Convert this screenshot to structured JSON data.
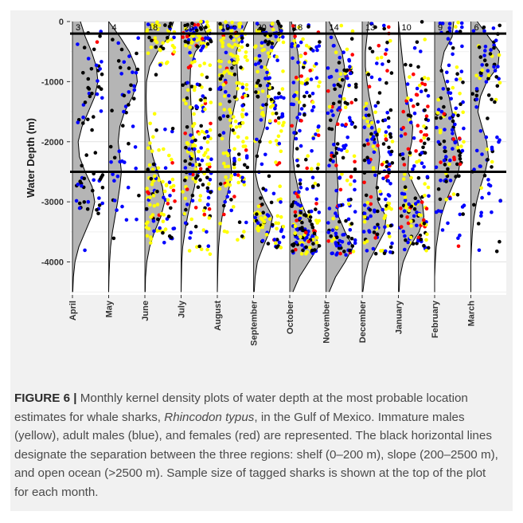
{
  "chart_data": {
    "type": "violin",
    "ylabel": "Water Depth (m)",
    "xlabel": "",
    "ylim": [
      -4550,
      0
    ],
    "y_ticks": [
      0,
      -1000,
      -2000,
      -3000,
      -4000
    ],
    "y_tick_labels": [
      "0",
      "-1000",
      "-2000",
      "-3000",
      "-4000"
    ],
    "grid": true,
    "legend": "none",
    "categories": [
      "April",
      "May",
      "June",
      "July",
      "August",
      "September",
      "October",
      "November",
      "December",
      "January",
      "February",
      "March"
    ],
    "sample_sizes": [
      "3",
      "4",
      "18",
      "26",
      "19",
      "20",
      "18",
      "14",
      "13",
      "10",
      "9",
      "6"
    ],
    "reference_lines": [
      -200,
      -2500
    ],
    "density_half_width": {
      "depths": [
        0,
        -250,
        -500,
        -750,
        -1000,
        -1250,
        -1500,
        -1750,
        -2000,
        -2250,
        -2500,
        -2750,
        -3000,
        -3250,
        -3500,
        -3750,
        -4000,
        -4250,
        -4500
      ],
      "values": [
        [
          0.25,
          0.4,
          0.6,
          0.75,
          0.8,
          0.7,
          0.5,
          0.3,
          0.18,
          0.22,
          0.4,
          0.62,
          0.7,
          0.6,
          0.4,
          0.2,
          0.08,
          0.03,
          0.01
        ],
        [
          0.0,
          0.35,
          0.65,
          0.85,
          0.9,
          0.75,
          0.5,
          0.35,
          0.3,
          0.35,
          0.4,
          0.35,
          0.28,
          0.2,
          0.12,
          0.06,
          0.03,
          0.01,
          0.0
        ],
        [
          0.9,
          0.75,
          0.4,
          0.15,
          0.05,
          0.04,
          0.05,
          0.08,
          0.15,
          0.25,
          0.4,
          0.55,
          0.62,
          0.5,
          0.3,
          0.15,
          0.06,
          0.02,
          0.01
        ],
        [
          0.6,
          0.85,
          0.45,
          0.3,
          0.28,
          0.3,
          0.32,
          0.35,
          0.4,
          0.45,
          0.5,
          0.42,
          0.3,
          0.2,
          0.12,
          0.05,
          0.02,
          0.01,
          0.0
        ],
        [
          0.95,
          0.75,
          0.6,
          0.62,
          0.65,
          0.6,
          0.5,
          0.42,
          0.38,
          0.4,
          0.45,
          0.38,
          0.25,
          0.15,
          0.08,
          0.04,
          0.02,
          0.01,
          0.0
        ],
        [
          0.75,
          0.85,
          0.55,
          0.4,
          0.45,
          0.45,
          0.4,
          0.35,
          0.2,
          0.1,
          0.05,
          0.15,
          0.35,
          0.6,
          0.5,
          0.3,
          0.12,
          0.05,
          0.02
        ],
        [
          0.05,
          0.15,
          0.25,
          0.3,
          0.3,
          0.3,
          0.28,
          0.2,
          0.12,
          0.1,
          0.15,
          0.25,
          0.35,
          0.55,
          0.8,
          0.9,
          0.6,
          0.3,
          0.1
        ],
        [
          0.1,
          0.3,
          0.5,
          0.58,
          0.6,
          0.5,
          0.45,
          0.3,
          0.28,
          0.32,
          0.35,
          0.38,
          0.35,
          0.4,
          0.6,
          0.85,
          0.6,
          0.3,
          0.1
        ],
        [
          0.2,
          0.15,
          0.1,
          0.1,
          0.15,
          0.22,
          0.32,
          0.42,
          0.5,
          0.55,
          0.5,
          0.45,
          0.5,
          0.75,
          0.7,
          0.45,
          0.2,
          0.08,
          0.02
        ],
        [
          0.0,
          0.05,
          0.1,
          0.15,
          0.22,
          0.28,
          0.35,
          0.45,
          0.42,
          0.32,
          0.3,
          0.5,
          0.75,
          0.8,
          0.65,
          0.35,
          0.15,
          0.05,
          0.02
        ],
        [
          0.6,
          0.55,
          0.3,
          0.2,
          0.32,
          0.45,
          0.55,
          0.6,
          0.72,
          0.82,
          0.75,
          0.55,
          0.35,
          0.2,
          0.12,
          0.05,
          0.02,
          0.0,
          0.0
        ],
        [
          0.2,
          0.55,
          0.9,
          0.85,
          0.5,
          0.3,
          0.22,
          0.35,
          0.5,
          0.55,
          0.45,
          0.3,
          0.18,
          0.1,
          0.05,
          0.02,
          0.0,
          0.0,
          0.0
        ]
      ]
    },
    "series": [
      {
        "color": "#ffff00"
      },
      {
        "color": "#0000ff"
      },
      {
        "color": "#ff0000"
      },
      {
        "color": "#000000"
      }
    ]
  },
  "caption": {
    "label": "FIGURE 6 |",
    "text_1": " Monthly kernel density plots of water depth at the most probable location estimates for whale sharks, ",
    "species": "Rhincodon typus",
    "text_2": ", in the Gulf of Mexico. Immature males (yellow), adult males (blue), and females (red) are represented. The black horizontal lines designate the separation between the three regions: shelf (0–200 m), slope (200–2500 m), and open ocean (>2500 m). Sample size of tagged sharks is shown at the top of the plot for each month."
  },
  "colors": {
    "violin_fill": "#b5b5b5",
    "panel_bg": "#f1f1f1",
    "reference_line": "#000000"
  }
}
